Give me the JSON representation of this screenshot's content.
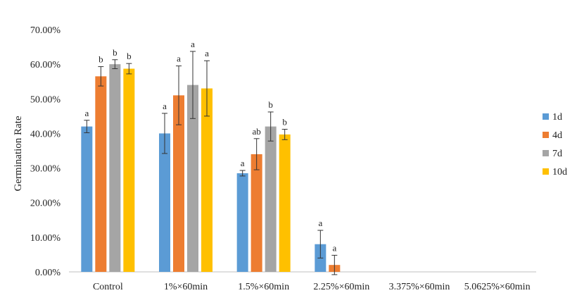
{
  "chart_data": {
    "type": "bar",
    "title": "",
    "xlabel": "",
    "ylabel": "Germination Rate",
    "ylim": [
      0,
      0.7
    ],
    "y_ticks": [
      "0.00%",
      "10.00%",
      "20.00%",
      "30.00%",
      "40.00%",
      "50.00%",
      "60.00%",
      "70.00%"
    ],
    "grid": false,
    "legend_position": "right",
    "categories": [
      "Control",
      "1%×60min",
      "1.5%×60min",
      "2.25%×60min",
      "3.375%×60min",
      "5.0625%×60min"
    ],
    "series": [
      {
        "name": "1d",
        "color": "#5B9BD5",
        "values": [
          0.42,
          0.4,
          0.285,
          0.08,
          0,
          0
        ],
        "errors": [
          0.018,
          0.058,
          0.008,
          0.04,
          0,
          0
        ],
        "letters": [
          "a",
          "a",
          "a",
          "a",
          "",
          ""
        ]
      },
      {
        "name": "4d",
        "color": "#ED7D31",
        "values": [
          0.565,
          0.51,
          0.34,
          0.02,
          0,
          0
        ],
        "errors": [
          0.028,
          0.085,
          0.045,
          0.028,
          0,
          0
        ],
        "letters": [
          "b",
          "a",
          "ab",
          "a",
          "",
          ""
        ]
      },
      {
        "name": "7d",
        "color": "#A5A5A5",
        "values": [
          0.6,
          0.54,
          0.42,
          0,
          0,
          0
        ],
        "errors": [
          0.013,
          0.097,
          0.042,
          0,
          0,
          0
        ],
        "letters": [
          "b",
          "a",
          "b",
          "",
          "",
          ""
        ]
      },
      {
        "name": "10d",
        "color": "#FFC000",
        "values": [
          0.587,
          0.53,
          0.397,
          0,
          0,
          0
        ],
        "errors": [
          0.015,
          0.08,
          0.015,
          0,
          0,
          0
        ],
        "letters": [
          "b",
          "a",
          "b",
          "",
          "",
          ""
        ]
      }
    ]
  }
}
